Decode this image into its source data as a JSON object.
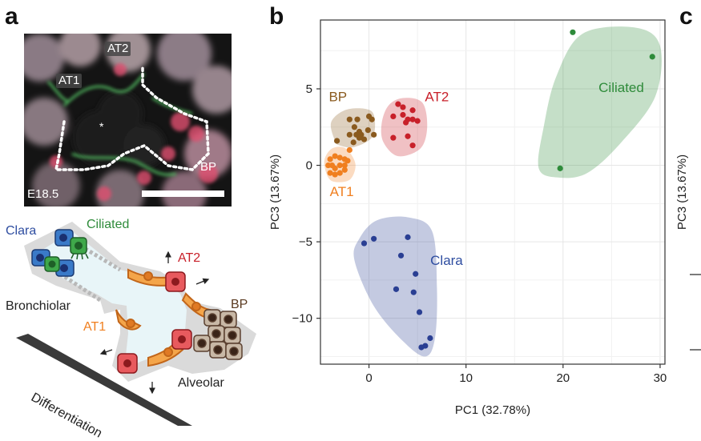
{
  "panels": {
    "a": "a",
    "b": "b",
    "c": "c"
  },
  "micrograph": {
    "labels": {
      "at2": "AT2",
      "at1": "AT1",
      "bp": "BP",
      "stage": "E18.5",
      "lumen": "*"
    }
  },
  "schematic": {
    "clara": "Clara",
    "ciliated": "Ciliated",
    "at2": "AT2",
    "bp": "BP",
    "bronchiolar": "Bronchiolar",
    "at1": "AT1",
    "alveolar": "Alveolar",
    "differentiation": "Differentiation"
  },
  "colors": {
    "at1": "#f07f1f",
    "at2": "#c8202a",
    "bp": "#8a5a1e",
    "ciliated": "#2e8b3a",
    "clara": "#2a3f93",
    "clara_label": "#2e4da0"
  },
  "panel_c": {
    "ylabel": "PC3 (13.67%)"
  },
  "chart_data": {
    "type": "scatter",
    "xlabel": "PC1 (32.78%)",
    "ylabel": "PC3 (13.67%)",
    "xlim": [
      -5,
      30.5
    ],
    "ylim": [
      -13,
      9.5
    ],
    "xticks": [
      0,
      10,
      20,
      30
    ],
    "yticks": [
      5,
      0,
      -5,
      -10
    ],
    "grid": true,
    "series": [
      {
        "name": "BP",
        "color_key": "bp",
        "label_pos": [
          -3.2,
          4.2
        ],
        "hull": [
          [
            -3.5,
            1.6
          ],
          [
            -3.9,
            2.8
          ],
          [
            -2.5,
            3.6
          ],
          [
            -0.5,
            3.7
          ],
          [
            0.5,
            3.3
          ],
          [
            0.4,
            1.9
          ],
          [
            -1.5,
            1.2
          ],
          [
            -3.0,
            1.3
          ]
        ],
        "points": [
          [
            -2.0,
            3.0
          ],
          [
            -1.2,
            3.0
          ],
          [
            0.0,
            3.2
          ],
          [
            0.3,
            3.0
          ],
          [
            -1.5,
            2.5
          ],
          [
            -1.0,
            2.2
          ],
          [
            -2.0,
            2.0
          ],
          [
            -1.3,
            2.0
          ],
          [
            -0.8,
            2.0
          ],
          [
            -1.0,
            1.8
          ],
          [
            -0.5,
            1.7
          ],
          [
            0.5,
            2.0
          ],
          [
            -0.1,
            2.3
          ],
          [
            -1.6,
            1.5
          ],
          [
            -3.3,
            1.6
          ]
        ]
      },
      {
        "name": "AT2",
        "color_key": "at2",
        "label_pos": [
          7.0,
          4.2
        ],
        "hull": [
          [
            1.3,
            2.7
          ],
          [
            2.0,
            3.9
          ],
          [
            3.5,
            4.4
          ],
          [
            5.5,
            4.1
          ],
          [
            6.0,
            2.5
          ],
          [
            5.3,
            1.1
          ],
          [
            3.0,
            0.6
          ],
          [
            1.5,
            1.5
          ]
        ],
        "points": [
          [
            3.0,
            4.0
          ],
          [
            3.5,
            3.8
          ],
          [
            4.5,
            3.6
          ],
          [
            2.5,
            3.2
          ],
          [
            3.5,
            3.3
          ],
          [
            4.0,
            3.0
          ],
          [
            4.5,
            3.0
          ],
          [
            3.8,
            2.8
          ],
          [
            5.0,
            2.9
          ],
          [
            2.5,
            1.8
          ],
          [
            4.0,
            1.9
          ],
          [
            4.5,
            1.3
          ]
        ]
      },
      {
        "name": "AT1",
        "color_key": "at1",
        "label_pos": [
          -2.8,
          -2.0
        ],
        "hull": [
          [
            -4.2,
            -0.8
          ],
          [
            -4.6,
            0.3
          ],
          [
            -3.8,
            1.1
          ],
          [
            -2.4,
            1.1
          ],
          [
            -1.4,
            0.1
          ],
          [
            -1.9,
            -0.9
          ],
          [
            -3.3,
            -1.1
          ]
        ],
        "points": [
          [
            -2.0,
            1.0
          ],
          [
            -4.0,
            0.4
          ],
          [
            -3.5,
            0.6
          ],
          [
            -3.0,
            0.5
          ],
          [
            -2.5,
            0.4
          ],
          [
            -2.2,
            0.3
          ],
          [
            -4.2,
            0.0
          ],
          [
            -3.8,
            0.0
          ],
          [
            -3.0,
            0.0
          ],
          [
            -2.5,
            0.0
          ],
          [
            -3.5,
            -0.2
          ],
          [
            -2.5,
            -0.3
          ],
          [
            -4.0,
            -0.5
          ],
          [
            -3.5,
            -0.6
          ],
          [
            -3.0,
            -0.5
          ]
        ]
      },
      {
        "name": "Ciliated",
        "color_key": "ciliated",
        "label_pos": [
          26.0,
          4.8
        ],
        "hull": [
          [
            17.5,
            -0.2
          ],
          [
            18.0,
            2.5
          ],
          [
            19.3,
            5.8
          ],
          [
            22.0,
            8.6
          ],
          [
            27.5,
            9.0
          ],
          [
            30.0,
            7.8
          ],
          [
            29.5,
            4.5
          ],
          [
            26.0,
            1.5
          ],
          [
            22.5,
            -0.5
          ],
          [
            19.5,
            -0.8
          ]
        ],
        "points": [
          [
            21.0,
            8.7
          ],
          [
            29.2,
            7.1
          ],
          [
            19.7,
            -0.2
          ]
        ]
      },
      {
        "name": "Clara",
        "color_key": "clara",
        "label_pos": [
          8.0,
          -6.5
        ],
        "hull": [
          [
            -1.0,
            -4.8
          ],
          [
            0.8,
            -3.6
          ],
          [
            4.0,
            -3.4
          ],
          [
            6.5,
            -4.3
          ],
          [
            7.0,
            -8.0
          ],
          [
            6.8,
            -11.3
          ],
          [
            5.8,
            -12.5
          ],
          [
            3.5,
            -11.5
          ],
          [
            0.5,
            -9.2
          ],
          [
            -1.5,
            -6.2
          ]
        ],
        "points": [
          [
            -0.5,
            -5.1
          ],
          [
            0.5,
            -4.8
          ],
          [
            4.0,
            -4.7
          ],
          [
            3.3,
            -5.9
          ],
          [
            4.8,
            -7.1
          ],
          [
            2.8,
            -8.1
          ],
          [
            4.6,
            -8.3
          ],
          [
            5.2,
            -9.6
          ],
          [
            6.3,
            -11.3
          ],
          [
            5.8,
            -11.8
          ],
          [
            5.4,
            -11.9
          ]
        ]
      }
    ]
  }
}
